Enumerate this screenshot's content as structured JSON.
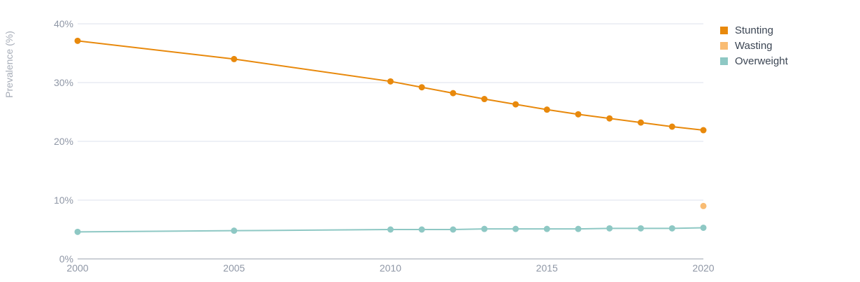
{
  "chart_data": {
    "type": "line",
    "ylabel": "Prevalence (%)",
    "ylim": [
      0,
      40
    ],
    "y_ticks": [
      "0%",
      "10%",
      "20%",
      "30%",
      "40%"
    ],
    "y_tick_values": [
      0,
      10,
      20,
      30,
      40
    ],
    "xlim": [
      2000,
      2020
    ],
    "x_ticks": [
      "2000",
      "2005",
      "2010",
      "2015",
      "2020"
    ],
    "x_tick_values": [
      2000,
      2005,
      2010,
      2015,
      2020
    ],
    "grid": true,
    "legend_position": "top-right",
    "series": [
      {
        "name": "Stunting",
        "color": "#e8890c",
        "x": [
          2000,
          2005,
          2010,
          2011,
          2012,
          2013,
          2014,
          2015,
          2016,
          2017,
          2018,
          2019,
          2020
        ],
        "values": [
          37.1,
          34.0,
          30.2,
          29.2,
          28.2,
          27.2,
          26.3,
          25.4,
          24.6,
          23.9,
          23.2,
          22.5,
          21.9
        ]
      },
      {
        "name": "Wasting",
        "color": "#f9bc73",
        "x": [
          2020
        ],
        "values": [
          9.0
        ]
      },
      {
        "name": "Overweight",
        "color": "#8ec8c4",
        "x": [
          2000,
          2005,
          2010,
          2011,
          2012,
          2013,
          2014,
          2015,
          2016,
          2017,
          2018,
          2019,
          2020
        ],
        "values": [
          4.6,
          4.8,
          5.0,
          5.0,
          5.0,
          5.1,
          5.1,
          5.1,
          5.1,
          5.2,
          5.2,
          5.2,
          5.3
        ]
      }
    ]
  }
}
